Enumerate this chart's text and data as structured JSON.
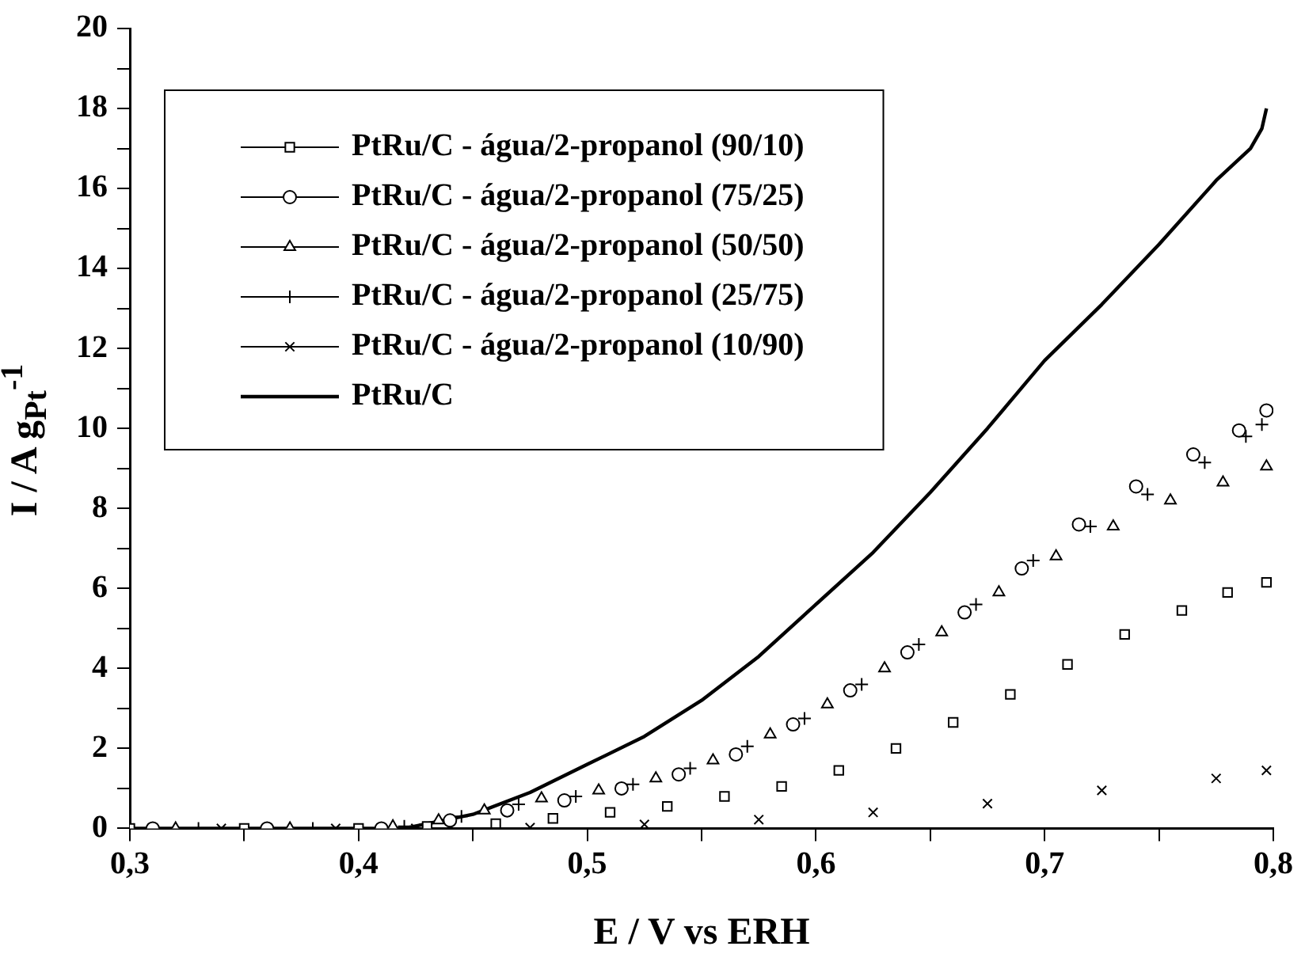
{
  "chart_data": {
    "type": "line",
    "xlabel": "E / V vs ERH",
    "ylabel": "I / A g$_{Pt}$$^{-1}$",
    "legend": "top left",
    "grid": false,
    "line_style": "solid",
    "xlim": [
      0.3,
      0.8
    ],
    "ylim": [
      0,
      20
    ],
    "xticks": [
      {
        "value": 0.3,
        "label": "0,3"
      },
      {
        "value": 0.35,
        "label": null
      },
      {
        "value": 0.4,
        "label": "0,4"
      },
      {
        "value": 0.45,
        "label": null
      },
      {
        "value": 0.5,
        "label": "0,5"
      },
      {
        "value": 0.55,
        "label": null
      },
      {
        "value": 0.6,
        "label": "0,6"
      },
      {
        "value": 0.65,
        "label": null
      },
      {
        "value": 0.7,
        "label": "0,7"
      },
      {
        "value": 0.75,
        "label": null
      },
      {
        "value": 0.8,
        "label": "0,8"
      }
    ],
    "yticks": [
      0,
      {
        "value": 1,
        "label": null
      },
      2,
      {
        "value": 3,
        "label": null
      },
      4,
      {
        "value": 5,
        "label": null
      },
      6,
      {
        "value": 7,
        "label": null
      },
      8,
      {
        "value": 9,
        "label": null
      },
      10,
      {
        "value": 11,
        "label": null
      },
      12,
      {
        "value": 13,
        "label": null
      },
      14,
      {
        "value": 15,
        "label": null
      },
      16,
      {
        "value": 17,
        "label": null
      },
      18,
      {
        "value": 19,
        "label": null
      },
      20
    ],
    "series": [
      {
        "name": "PtRu/C - água/2-propanol (90/10)",
        "type": "scatter",
        "color": "#000000",
        "marker": "square",
        "x": [
          0.3,
          0.35,
          0.4,
          0.43,
          0.46,
          0.485,
          0.51,
          0.535,
          0.56,
          0.585,
          0.61,
          0.635,
          0.66,
          0.685,
          0.71,
          0.735,
          0.76,
          0.78,
          0.797
        ],
        "values": [
          0,
          0,
          0,
          0.05,
          0.12,
          0.25,
          0.4,
          0.55,
          0.8,
          1.05,
          1.45,
          2.0,
          2.65,
          3.35,
          4.1,
          4.85,
          5.45,
          5.9,
          6.15
        ]
      },
      {
        "name": "PtRu/C - água/2-propanol (75/25)",
        "type": "scatter",
        "color": "#000000",
        "marker": "circle",
        "x": [
          0.31,
          0.36,
          0.41,
          0.44,
          0.465,
          0.49,
          0.515,
          0.54,
          0.565,
          0.59,
          0.615,
          0.64,
          0.665,
          0.69,
          0.715,
          0.74,
          0.765,
          0.785,
          0.797
        ],
        "values": [
          0,
          0,
          0,
          0.2,
          0.45,
          0.7,
          1.0,
          1.35,
          1.85,
          2.6,
          3.45,
          4.4,
          5.4,
          6.5,
          7.6,
          8.55,
          9.35,
          9.95,
          10.45
        ]
      },
      {
        "name": "PtRu/C - água/2-propanol (50/50)",
        "type": "scatter",
        "color": "#000000",
        "marker": "triangle",
        "x": [
          0.32,
          0.37,
          0.415,
          0.435,
          0.455,
          0.48,
          0.505,
          0.53,
          0.555,
          0.58,
          0.605,
          0.63,
          0.655,
          0.68,
          0.705,
          0.73,
          0.755,
          0.778,
          0.797
        ],
        "values": [
          0,
          0,
          0.05,
          0.2,
          0.45,
          0.75,
          0.95,
          1.25,
          1.7,
          2.35,
          3.1,
          4.0,
          4.9,
          5.9,
          6.8,
          7.55,
          8.2,
          8.65,
          9.05
        ]
      },
      {
        "name": "PtRu/C - água/2-propanol (25/75)",
        "type": "scatter",
        "color": "#000000",
        "marker": "plus",
        "x": [
          0.33,
          0.38,
          0.42,
          0.445,
          0.47,
          0.495,
          0.52,
          0.545,
          0.57,
          0.595,
          0.62,
          0.645,
          0.67,
          0.695,
          0.72,
          0.745,
          0.77,
          0.788,
          0.795
        ],
        "values": [
          0,
          0,
          0.05,
          0.3,
          0.6,
          0.8,
          1.1,
          1.5,
          2.05,
          2.75,
          3.6,
          4.6,
          5.6,
          6.7,
          7.55,
          8.35,
          9.15,
          9.8,
          10.1
        ]
      },
      {
        "name": "PtRu/C - água/2-propanol (10/90)",
        "type": "scatter",
        "color": "#000000",
        "marker": "cross",
        "x": [
          0.34,
          0.39,
          0.425,
          0.475,
          0.525,
          0.575,
          0.625,
          0.675,
          0.725,
          0.775,
          0.797
        ],
        "values": [
          0,
          0,
          0,
          0.02,
          0.1,
          0.22,
          0.4,
          0.62,
          0.95,
          1.25,
          1.45
        ]
      },
      {
        "name": "PtRu/C",
        "color": "#000000",
        "marker": "none",
        "x": [
          0.3,
          0.35,
          0.4,
          0.42,
          0.45,
          0.475,
          0.5,
          0.525,
          0.55,
          0.575,
          0.6,
          0.625,
          0.65,
          0.675,
          0.7,
          0.725,
          0.75,
          0.775,
          0.79,
          0.795,
          0.797
        ],
        "values": [
          0,
          0,
          0,
          0,
          0.35,
          0.9,
          1.6,
          2.3,
          3.2,
          4.3,
          5.6,
          6.9,
          8.4,
          10.0,
          11.7,
          13.1,
          14.6,
          16.2,
          17.0,
          17.5,
          18.0
        ]
      }
    ]
  }
}
